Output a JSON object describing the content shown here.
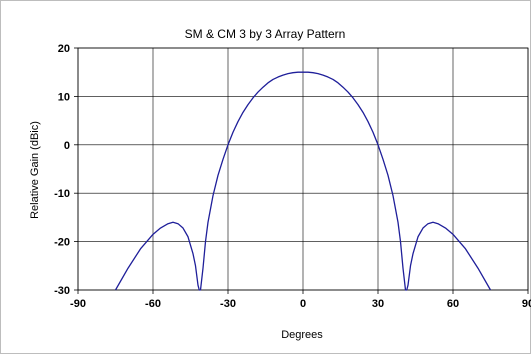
{
  "chart_data": {
    "type": "line",
    "title": "SM & CM 3 by 3 Array Pattern",
    "xlabel": "Degrees",
    "ylabel": "Relative Gain (dBic)",
    "xlim": [
      -90,
      90
    ],
    "ylim": [
      -30,
      20
    ],
    "x_ticks": [
      -90,
      -60,
      -30,
      0,
      30,
      60,
      90
    ],
    "y_ticks": [
      20,
      10,
      0,
      -10,
      -20,
      -30
    ],
    "x_tick_labels": [
      "-90",
      "-60",
      "-30",
      "0",
      "30",
      "60",
      "90"
    ],
    "y_tick_labels": [
      "20",
      "10",
      "0",
      "-10",
      "-20",
      "-30"
    ],
    "grid": true,
    "legend": "none",
    "series": [
      {
        "color": "#1f1f9a",
        "x": [
          -75,
          -70,
          -65,
          -60,
          -57,
          -54,
          -52,
          -50,
          -48,
          -46,
          -44,
          -43,
          -42,
          -41.5,
          -41,
          -40,
          -39,
          -38,
          -36,
          -34,
          -32,
          -30,
          -28,
          -26,
          -24,
          -22,
          -20,
          -18,
          -16,
          -14,
          -12,
          -10,
          -8,
          -6,
          -4,
          -2,
          0,
          2,
          4,
          6,
          8,
          10,
          12,
          14,
          16,
          18,
          20,
          22,
          24,
          26,
          28,
          30,
          32,
          34,
          36,
          38,
          39,
          40,
          41,
          41.5,
          42,
          43,
          44,
          46,
          48,
          50,
          52,
          54,
          57,
          60,
          65,
          70,
          75
        ],
        "y": [
          -30,
          -25.5,
          -21.5,
          -18.5,
          -17.2,
          -16.3,
          -16,
          -16.3,
          -17.2,
          -19,
          -22.5,
          -25,
          -29,
          -30,
          -30,
          -25.5,
          -20,
          -16,
          -10.5,
          -6.3,
          -3,
          0,
          2.6,
          4.8,
          6.7,
          8.3,
          9.7,
          10.9,
          11.9,
          12.8,
          13.5,
          14,
          14.4,
          14.7,
          14.9,
          15,
          15,
          15,
          14.9,
          14.7,
          14.4,
          14,
          13.5,
          12.8,
          11.9,
          10.9,
          9.7,
          8.3,
          6.7,
          4.8,
          2.6,
          0,
          -3,
          -6.3,
          -10.5,
          -16,
          -20,
          -25.5,
          -30,
          -30,
          -29,
          -25,
          -22.5,
          -19,
          -17.2,
          -16.3,
          -16,
          -16.3,
          -17.2,
          -18.5,
          -21.5,
          -25.5,
          -30
        ]
      }
    ]
  },
  "style": {
    "plot_background": "#ffffff",
    "grid_color": "#000000",
    "frame_color": "#000000",
    "series_color": "#1f1f9a"
  }
}
